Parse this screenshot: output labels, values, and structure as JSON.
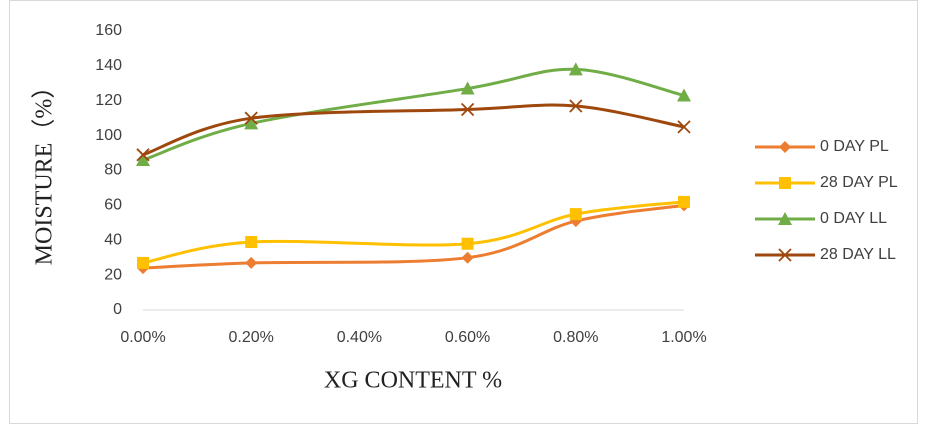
{
  "chart_data": {
    "type": "line",
    "x_label": "XG CONTENT %",
    "y_label": "MOISTURE（%）",
    "x": [
      0,
      0.2,
      0.6,
      0.8,
      1.0
    ],
    "xlim": [
      0,
      1
    ],
    "xticks": [
      {
        "value": 0,
        "label": "0.00%"
      },
      {
        "value": 0.2,
        "label": "0.20%"
      },
      {
        "value": 0.4,
        "label": "0.40%"
      },
      {
        "value": 0.6,
        "label": "0.60%"
      },
      {
        "value": 0.8,
        "label": "0.80%"
      },
      {
        "value": 1.0,
        "label": "1.00%"
      }
    ],
    "ylim": [
      0,
      160
    ],
    "yticks": [
      0,
      20,
      40,
      60,
      80,
      100,
      120,
      140,
      160
    ],
    "grid": false,
    "smooth": true,
    "legend": "right",
    "series": [
      {
        "name": "0 DAY PL",
        "color": "#ED7D31",
        "marker": "diamond",
        "values": [
          24,
          27,
          30,
          51,
          60
        ]
      },
      {
        "name": "28 DAY PL",
        "color": "#FFC000",
        "marker": "square",
        "values": [
          27,
          39,
          38,
          55,
          62
        ]
      },
      {
        "name": "0 DAY LL",
        "color": "#70AD47",
        "marker": "triangle",
        "values": [
          86,
          107,
          127,
          138,
          123
        ]
      },
      {
        "name": "28 DAY LL",
        "color": "#9E480E",
        "marker": "x",
        "values": [
          89,
          110,
          115,
          117,
          105
        ]
      }
    ]
  }
}
